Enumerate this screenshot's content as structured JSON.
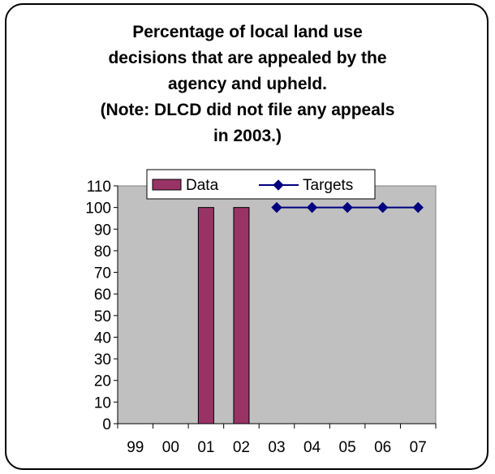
{
  "chart_data": {
    "type": "bar",
    "title_lines": [
      "Percentage of local land use",
      "decisions that are appealed by the",
      "agency and upheld.",
      "(Note: DLCD did not file any appeals",
      "in 2003.)"
    ],
    "categories": [
      "99",
      "00",
      "01",
      "02",
      "03",
      "04",
      "05",
      "06",
      "07"
    ],
    "series": [
      {
        "name": "Data",
        "kind": "bar",
        "color": "#993366",
        "values": [
          null,
          null,
          100,
          100,
          null,
          null,
          null,
          null,
          null
        ]
      },
      {
        "name": "Targets",
        "kind": "line",
        "color": "#000080",
        "marker": "diamond",
        "values": [
          null,
          null,
          null,
          null,
          100,
          100,
          100,
          100,
          100
        ]
      }
    ],
    "ylim": [
      0,
      110
    ],
    "yticks": [
      "0",
      "10",
      "20",
      "30",
      "40",
      "50",
      "60",
      "70",
      "80",
      "90",
      "100",
      "110"
    ],
    "plot_background": "#c0c0c0",
    "grid": false,
    "legend_position": "top"
  }
}
